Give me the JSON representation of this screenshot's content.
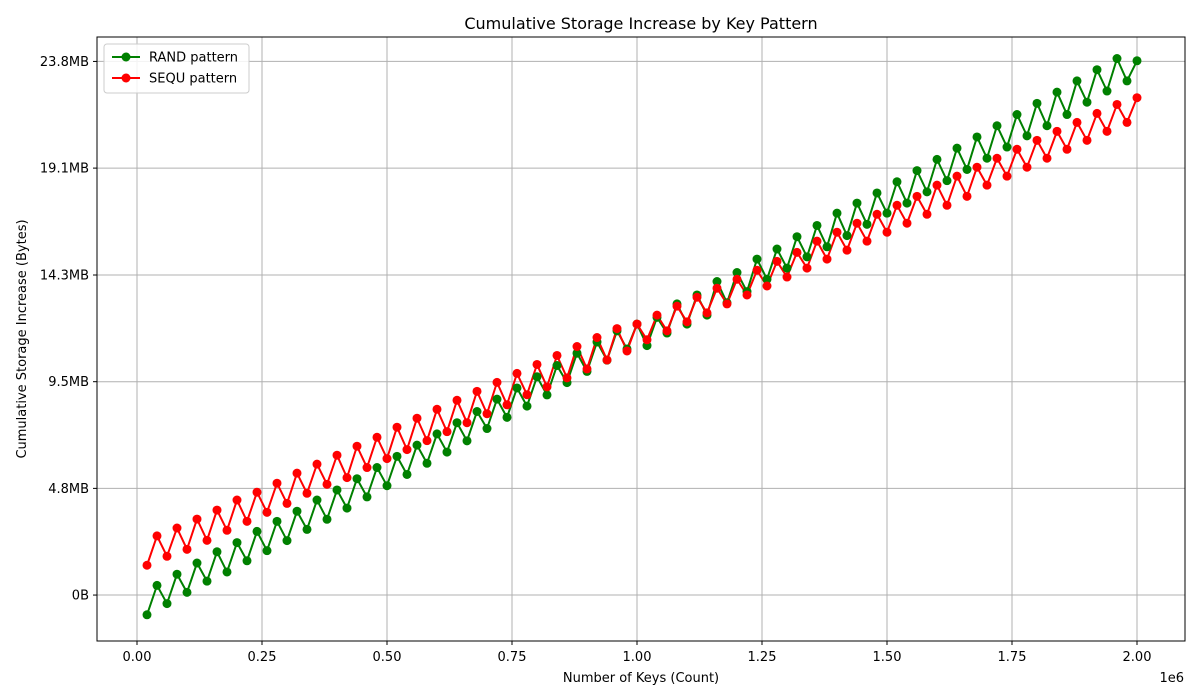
{
  "chart_data": {
    "type": "line",
    "title": "Cumulative Storage Increase by Key Pattern",
    "xlabel": "Number of Keys (Count)",
    "ylabel": "Cumulative Storage Increase (Bytes)",
    "x_offset_label": "1e6",
    "xlim": [
      -0.08,
      2.096
    ],
    "ylim": [
      -2.05,
      24.9
    ],
    "x_ticks": [
      0.0,
      0.25,
      0.5,
      0.75,
      1.0,
      1.25,
      1.5,
      1.75,
      2.0
    ],
    "x_tick_labels": [
      "0.00",
      "0.25",
      "0.50",
      "0.75",
      "1.00",
      "1.25",
      "1.50",
      "1.75",
      "2.00"
    ],
    "y_ticks": [
      0,
      4.76,
      9.52,
      14.28,
      19.05,
      23.81
    ],
    "y_tick_labels": [
      "0B",
      "4.8MB",
      "9.5MB",
      "14.3MB",
      "19.1MB",
      "23.8MB"
    ],
    "grid": true,
    "legend_position": "top-left",
    "x": [
      0.02,
      0.04,
      0.06,
      0.08,
      0.1,
      0.12,
      0.14,
      0.16,
      0.18,
      0.2,
      0.22,
      0.24,
      0.26,
      0.28,
      0.3,
      0.32,
      0.34,
      0.36,
      0.38,
      0.4,
      0.42,
      0.44,
      0.46,
      0.48,
      0.5,
      0.52,
      0.54,
      0.56,
      0.58,
      0.6,
      0.62,
      0.64,
      0.66,
      0.68,
      0.7,
      0.72,
      0.74,
      0.76,
      0.78,
      0.8,
      0.82,
      0.84,
      0.86,
      0.88,
      0.9,
      0.92,
      0.94,
      0.96,
      0.98,
      1.0,
      1.02,
      1.04,
      1.06,
      1.08,
      1.1,
      1.12,
      1.14,
      1.16,
      1.18,
      1.2,
      1.22,
      1.24,
      1.26,
      1.28,
      1.3,
      1.32,
      1.34,
      1.36,
      1.38,
      1.4,
      1.42,
      1.44,
      1.46,
      1.48,
      1.5,
      1.52,
      1.54,
      1.56,
      1.58,
      1.6,
      1.62,
      1.64,
      1.66,
      1.68,
      1.7,
      1.72,
      1.74,
      1.76,
      1.78,
      1.8,
      1.82,
      1.84,
      1.86,
      1.88,
      1.9,
      1.92,
      1.94,
      1.96,
      1.98,
      2.0
    ],
    "series": [
      {
        "name": "RAND pattern",
        "color": "#008000",
        "values": [
          -0.88,
          0.43,
          -0.38,
          0.93,
          0.12,
          1.43,
          0.62,
          1.93,
          1.03,
          2.34,
          1.53,
          2.84,
          1.98,
          3.29,
          2.43,
          3.74,
          2.93,
          4.24,
          3.38,
          4.69,
          3.88,
          5.19,
          4.38,
          5.69,
          4.88,
          6.19,
          5.38,
          6.69,
          5.88,
          7.19,
          6.38,
          7.69,
          6.88,
          8.19,
          7.43,
          8.74,
          7.93,
          9.24,
          8.43,
          9.74,
          8.93,
          10.24,
          9.48,
          10.79,
          9.98,
          11.29,
          10.48,
          11.79,
          10.98,
          12.09,
          11.13,
          12.39,
          11.69,
          12.99,
          12.09,
          13.39,
          12.49,
          13.99,
          13.04,
          14.39,
          13.54,
          14.99,
          14.09,
          15.44,
          14.59,
          15.99,
          15.09,
          16.49,
          15.54,
          17.04,
          16.04,
          17.49,
          16.54,
          17.94,
          17.04,
          18.44,
          17.49,
          18.94,
          17.99,
          19.44,
          18.49,
          19.94,
          18.99,
          20.44,
          19.49,
          20.94,
          19.99,
          21.44,
          20.49,
          21.94,
          20.94,
          22.44,
          21.44,
          22.94,
          21.99,
          23.44,
          22.49,
          23.94,
          22.94,
          23.84
        ]
      },
      {
        "name": "SEQU pattern",
        "color": "#ff0000",
        "values": [
          1.33,
          2.64,
          1.73,
          2.99,
          2.04,
          3.39,
          2.44,
          3.79,
          2.89,
          4.24,
          3.29,
          4.59,
          3.69,
          4.99,
          4.09,
          5.44,
          4.54,
          5.84,
          4.94,
          6.24,
          5.24,
          6.64,
          5.69,
          7.04,
          6.09,
          7.49,
          6.49,
          7.89,
          6.89,
          8.29,
          7.29,
          8.69,
          7.69,
          9.09,
          8.09,
          9.49,
          8.49,
          9.89,
          8.94,
          10.29,
          9.29,
          10.69,
          9.69,
          11.09,
          10.09,
          11.49,
          10.49,
          11.89,
          10.89,
          12.09,
          11.39,
          12.49,
          11.79,
          12.89,
          12.19,
          13.29,
          12.59,
          13.69,
          12.99,
          14.09,
          13.39,
          14.49,
          13.79,
          14.89,
          14.19,
          15.29,
          14.59,
          15.79,
          14.99,
          16.19,
          15.39,
          16.59,
          15.79,
          16.99,
          16.19,
          17.39,
          16.59,
          17.79,
          16.99,
          18.29,
          17.39,
          18.69,
          17.79,
          19.09,
          18.29,
          19.49,
          18.69,
          19.89,
          19.09,
          20.29,
          19.49,
          20.69,
          19.89,
          21.09,
          20.29,
          21.49,
          20.69,
          21.89,
          21.09,
          22.19
        ]
      }
    ]
  }
}
